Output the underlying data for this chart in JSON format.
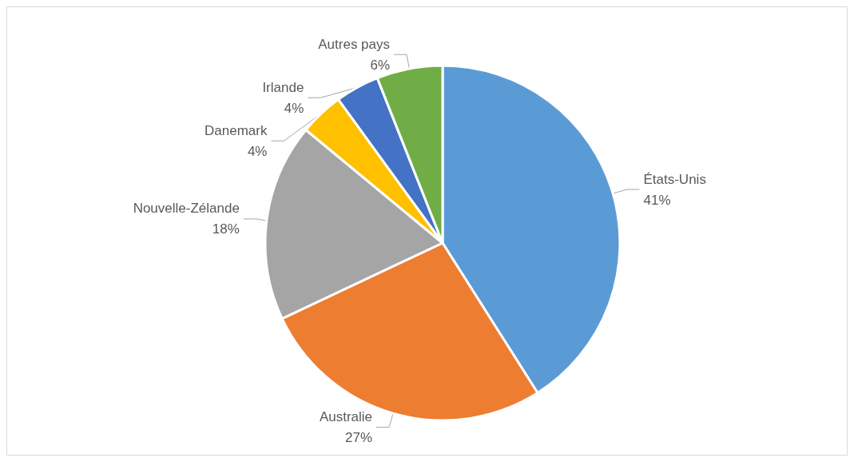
{
  "chart_data": {
    "type": "pie",
    "categories": [
      "États-Unis",
      "Australie",
      "Nouvelle-Zélande",
      "Danemark",
      "Irlande",
      "Autres pays"
    ],
    "values": [
      41,
      27,
      18,
      4,
      4,
      6
    ],
    "value_labels": [
      "41%",
      "27%",
      "18%",
      "4%",
      "4%",
      "6%"
    ],
    "colors": [
      "#5b9bd5",
      "#ed7d31",
      "#a5a5a5",
      "#ffc000",
      "#4472c4",
      "#70ad47"
    ]
  }
}
